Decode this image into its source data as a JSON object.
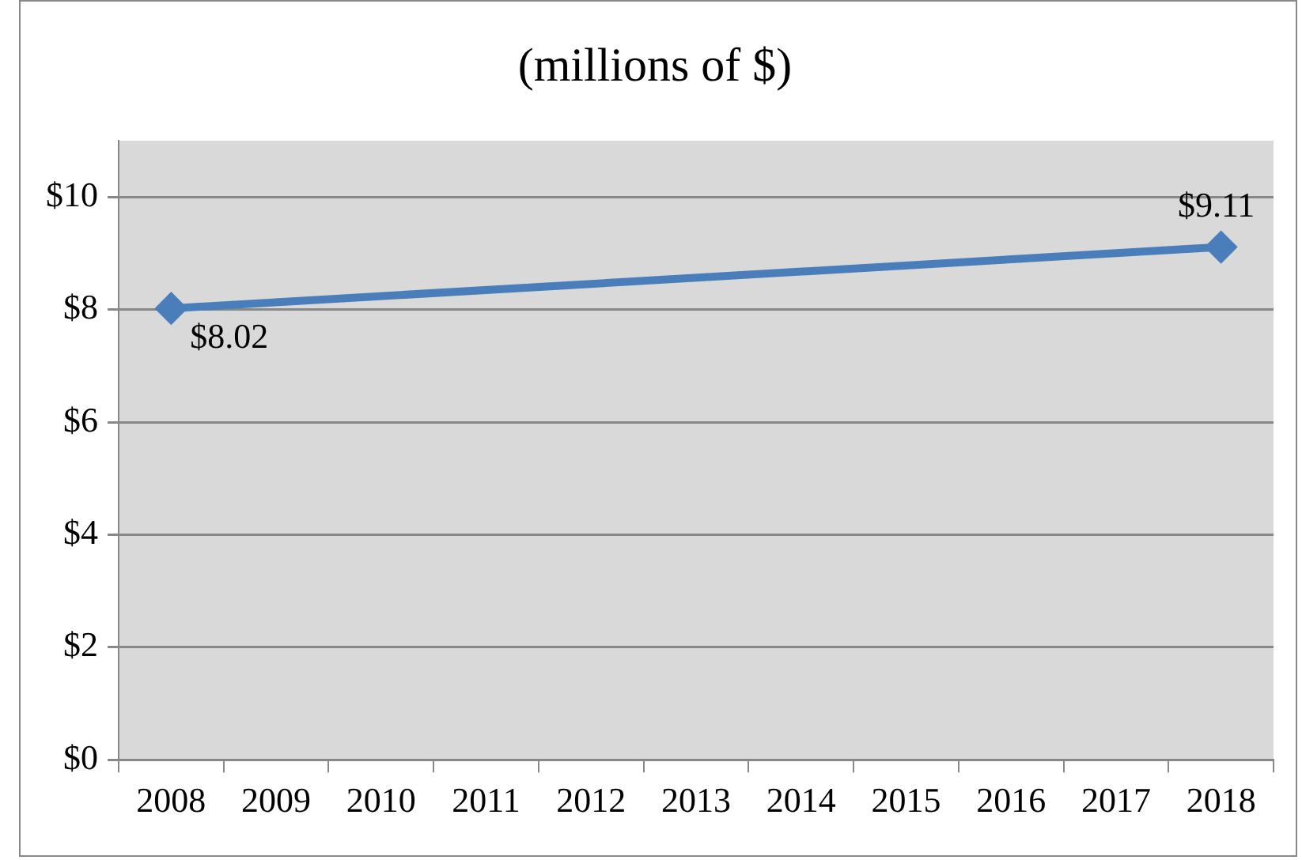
{
  "chart_data": {
    "type": "line",
    "title": "(millions of $)",
    "categories": [
      "2008",
      "2009",
      "2010",
      "2011",
      "2012",
      "2013",
      "2014",
      "2015",
      "2016",
      "2017",
      "2018"
    ],
    "series": [
      {
        "color": "#4a7ebb",
        "values": [
          8.02,
          null,
          null,
          null,
          null,
          null,
          null,
          null,
          null,
          null,
          9.11
        ],
        "value_labels": [
          "$8.02",
          null,
          null,
          null,
          null,
          null,
          null,
          null,
          null,
          null,
          "$9.11"
        ]
      }
    ],
    "ylim": [
      0,
      11
    ],
    "yticks": [
      {
        "value": 0,
        "label": "$0"
      },
      {
        "value": 2,
        "label": "$2"
      },
      {
        "value": 4,
        "label": "$4"
      },
      {
        "value": 6,
        "label": "$6"
      },
      {
        "value": 8,
        "label": "$8"
      },
      {
        "value": 10,
        "label": "$10"
      }
    ],
    "grid": "y",
    "legend": false,
    "marker": "diamond",
    "line_style": "solid"
  }
}
